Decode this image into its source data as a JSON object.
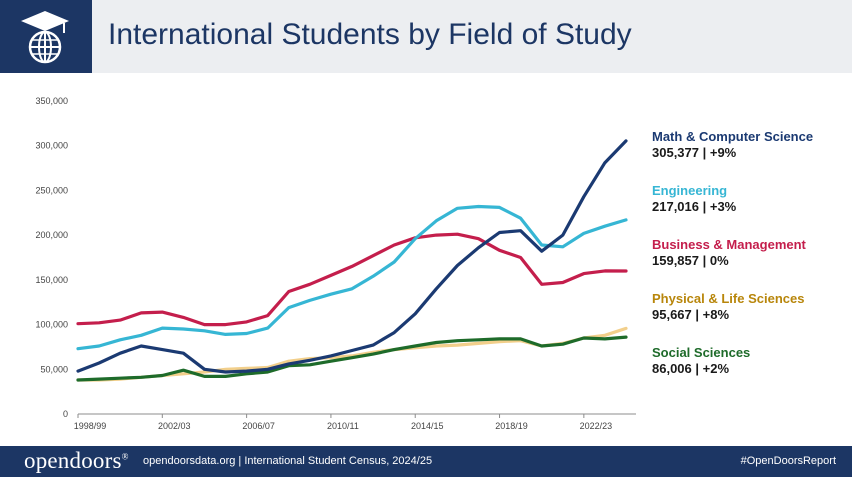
{
  "header": {
    "title": "International Students by Field of Study",
    "logo_icon": "globe-graduation-cap-icon"
  },
  "colors": {
    "navy": "#1c3664",
    "math": "#1b3a72",
    "engineering": "#36b6d4",
    "business": "#c41e4c",
    "physical": "#f2cf8b",
    "social": "#1e6b2a"
  },
  "legend": [
    {
      "name": "Math & Computer Science",
      "value": "305,377  |  +9%",
      "color": "#1b3a72"
    },
    {
      "name": "Engineering",
      "value": "217,016  |  +3%",
      "color": "#36b6d4"
    },
    {
      "name": "Business & Management",
      "value": "159,857  | 0%",
      "color": "#c41e4c"
    },
    {
      "name": "Physical & Life Sciences",
      "value": "95,667  |  +8%",
      "color": "#b8860b"
    },
    {
      "name": "Social Sciences",
      "value": "86,006  |  +2%",
      "color": "#1e6b2a"
    }
  ],
  "chart_data": {
    "type": "line",
    "title": "International Students by Field of Study",
    "ylim": [
      0,
      350000
    ],
    "y_ticks": [
      "0",
      "50,000",
      "100,000",
      "150,000",
      "200,000",
      "250,000",
      "300,000",
      "350,000"
    ],
    "x_tick_labels": [
      "1998/99",
      "2002/03",
      "2006/07",
      "2010/11",
      "2014/15",
      "2018/19",
      "2022/23"
    ],
    "x": [
      "1998/99",
      "1999/00",
      "2000/01",
      "2001/02",
      "2002/03",
      "2003/04",
      "2004/05",
      "2005/06",
      "2006/07",
      "2007/08",
      "2008/09",
      "2009/10",
      "2010/11",
      "2011/12",
      "2012/13",
      "2013/14",
      "2014/15",
      "2015/16",
      "2016/17",
      "2017/18",
      "2018/19",
      "2019/20",
      "2020/21",
      "2021/22",
      "2022/23",
      "2023/24",
      "2024/25"
    ],
    "grid": false,
    "legend_position": "right",
    "series": [
      {
        "name": "Math & Computer Science",
        "color": "#1b3a72",
        "values": [
          48000,
          57000,
          68000,
          76000,
          72000,
          68000,
          50000,
          47000,
          48000,
          50000,
          56000,
          60000,
          65000,
          71000,
          77000,
          91000,
          112000,
          140000,
          166000,
          186000,
          203000,
          205000,
          182000,
          200000,
          243000,
          281000,
          305377
        ]
      },
      {
        "name": "Engineering",
        "color": "#36b6d4",
        "values": [
          73000,
          76000,
          83000,
          88000,
          96000,
          95000,
          93000,
          89000,
          90000,
          96000,
          119000,
          127000,
          134000,
          140000,
          154000,
          170000,
          196000,
          216000,
          230000,
          232000,
          231000,
          219000,
          189000,
          187000,
          202000,
          210000,
          217016
        ]
      },
      {
        "name": "Business & Management",
        "color": "#c41e4c",
        "values": [
          101000,
          102000,
          105000,
          113000,
          114000,
          108000,
          100000,
          100000,
          103000,
          110000,
          137000,
          145000,
          155000,
          165000,
          177000,
          189000,
          197000,
          200000,
          201000,
          196000,
          183000,
          175000,
          145000,
          147000,
          157000,
          160000,
          159857
        ]
      },
      {
        "name": "Physical & Life Sciences",
        "color": "#f2cf8b",
        "values": [
          38000,
          38000,
          39000,
          41000,
          43000,
          45000,
          47000,
          50000,
          51000,
          52000,
          59000,
          62000,
          63000,
          65000,
          69000,
          72000,
          74000,
          76000,
          77000,
          79000,
          81000,
          82000,
          76000,
          79000,
          85000,
          88000,
          95667
        ]
      },
      {
        "name": "Social Sciences",
        "color": "#1e6b2a",
        "values": [
          38000,
          39000,
          40000,
          41000,
          43000,
          49000,
          42000,
          42000,
          45000,
          47000,
          54000,
          55000,
          59000,
          63000,
          67000,
          72000,
          76000,
          80000,
          82000,
          83000,
          84000,
          84000,
          76000,
          78000,
          85000,
          84000,
          86006
        ]
      }
    ]
  },
  "footer": {
    "brand": "opendoors",
    "brand_mark": "®",
    "text": "opendoorsdata.org  |  International Student Census, 2024/25",
    "hashtag": "#OpenDoorsReport"
  }
}
